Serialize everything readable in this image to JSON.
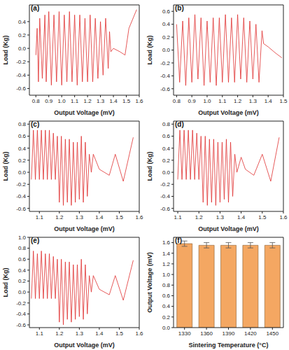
{
  "chart_data": [
    {
      "type": "line",
      "title": "(a)",
      "x_label": "Output Voltage (mV)",
      "y_label": "Load (Kg)",
      "color": "#e03030",
      "xlim": [
        0.75,
        1.6
      ],
      "ylim": [
        -0.7,
        0.65
      ],
      "xticks": [
        0.8,
        0.9,
        {
          "value": 1,
          "label": "1.0"
        },
        1.1,
        1.2,
        1.3,
        1.4,
        1.5,
        1.6
      ],
      "yticks": [
        -0.6,
        -0.4,
        -0.2,
        {
          "value": 0,
          "label": "0.0"
        },
        0.2,
        0.4
      ],
      "x": [
        0.8,
        0.81,
        0.82,
        0.83,
        0.85,
        0.87,
        0.88,
        0.9,
        0.92,
        0.94,
        0.96,
        0.98,
        1.0,
        1.02,
        1.04,
        1.06,
        1.08,
        1.1,
        1.12,
        1.14,
        1.16,
        1.18,
        1.2,
        1.22,
        1.24,
        1.26,
        1.28,
        1.3,
        1.32,
        1.34,
        1.36,
        1.37,
        1.38,
        1.4,
        1.45,
        1.49,
        1.52,
        1.58
      ],
      "values": [
        -0.1,
        0.3,
        -0.5,
        0.45,
        -0.45,
        0.5,
        -0.5,
        0.55,
        -0.55,
        0.5,
        -0.5,
        0.55,
        -0.55,
        0.5,
        -0.5,
        0.55,
        -0.5,
        0.5,
        -0.55,
        0.5,
        -0.5,
        0.45,
        -0.5,
        0.5,
        -0.5,
        0.45,
        -0.45,
        0.4,
        -0.4,
        0.45,
        -0.3,
        0.25,
        -0.05,
        0.0,
        -0.05,
        -0.1,
        0.3,
        0.58
      ]
    },
    {
      "type": "line",
      "title": "(b)",
      "x_label": "Output Voltage (mV)",
      "y_label": "Load (Kg)",
      "color": "#e03030",
      "xlim": [
        0.78,
        1.5
      ],
      "ylim": [
        -0.7,
        0.7
      ],
      "xticks": [
        0.8,
        0.9,
        {
          "value": 1,
          "label": "1.0"
        },
        1.1,
        1.2,
        1.3,
        1.4,
        1.5
      ],
      "yticks": [
        -0.6,
        -0.4,
        -0.2,
        {
          "value": 0,
          "label": "0.0"
        },
        0.2,
        0.4,
        0.6
      ],
      "x": [
        0.8,
        0.82,
        0.84,
        0.86,
        0.88,
        0.9,
        0.92,
        0.94,
        0.96,
        0.98,
        1.0,
        1.02,
        1.04,
        1.06,
        1.08,
        1.1,
        1.12,
        1.14,
        1.16,
        1.18,
        1.2,
        1.22,
        1.24,
        1.26,
        1.28,
        1.3,
        1.32,
        1.34,
        1.36,
        1.37,
        1.4,
        1.45,
        1.49
      ],
      "values": [
        0.4,
        -0.5,
        0.45,
        -0.55,
        0.5,
        -0.5,
        0.55,
        -0.45,
        0.5,
        -0.55,
        0.45,
        -0.5,
        0.5,
        -0.55,
        0.5,
        -0.5,
        0.55,
        -0.5,
        0.5,
        -0.5,
        0.55,
        -0.45,
        0.5,
        -0.5,
        0.45,
        -0.45,
        0.4,
        -0.5,
        0.3,
        0.1,
        0.05,
        -0.05,
        -0.12
      ]
    },
    {
      "type": "line",
      "title": "(c)",
      "x_label": "Output Voltage (mV)",
      "y_label": "Load (Kg)",
      "color": "#e03030",
      "xlim": [
        1.05,
        1.6
      ],
      "ylim": [
        -0.65,
        0.85
      ],
      "xticks": [
        1.1,
        1.2,
        1.3,
        1.4,
        1.5,
        1.6
      ],
      "yticks": [
        -0.6,
        -0.4,
        -0.2,
        {
          "value": 0,
          "label": "0.0"
        },
        0.2,
        0.4,
        0.6,
        0.8
      ],
      "x": [
        1.06,
        1.07,
        1.08,
        1.09,
        1.1,
        1.11,
        1.12,
        1.13,
        1.14,
        1.15,
        1.16,
        1.17,
        1.18,
        1.19,
        1.2,
        1.21,
        1.22,
        1.23,
        1.24,
        1.25,
        1.26,
        1.27,
        1.28,
        1.29,
        1.3,
        1.31,
        1.32,
        1.33,
        1.34,
        1.35,
        1.36,
        1.37,
        1.4,
        1.45,
        1.48,
        1.52,
        1.57
      ],
      "values": [
        -0.12,
        0.7,
        -0.12,
        0.7,
        -0.12,
        0.7,
        -0.12,
        0.7,
        -0.12,
        0.7,
        -0.12,
        0.65,
        -0.12,
        0.6,
        -0.5,
        0.6,
        -0.55,
        0.55,
        -0.5,
        0.55,
        -0.55,
        0.5,
        -0.5,
        0.5,
        -0.45,
        0.6,
        -0.5,
        0.5,
        -0.4,
        0.3,
        0.0,
        0.3,
        0.05,
        -0.05,
        0.3,
        -0.15,
        0.58
      ]
    },
    {
      "type": "line",
      "title": "(d)",
      "x_label": "Output Voltage (mV)",
      "y_label": "Load (Kg)",
      "color": "#e03030",
      "xlim": [
        1.08,
        1.6
      ],
      "ylim": [
        -0.65,
        0.85
      ],
      "xticks": [
        1.1,
        1.2,
        1.3,
        1.4,
        1.5,
        1.6
      ],
      "yticks": [
        -0.6,
        -0.4,
        -0.2,
        {
          "value": 0,
          "label": "0.0"
        },
        0.2,
        0.4,
        0.6,
        0.8
      ],
      "x": [
        1.1,
        1.11,
        1.12,
        1.13,
        1.14,
        1.15,
        1.16,
        1.17,
        1.18,
        1.19,
        1.2,
        1.21,
        1.22,
        1.23,
        1.24,
        1.25,
        1.26,
        1.27,
        1.28,
        1.29,
        1.3,
        1.31,
        1.32,
        1.33,
        1.34,
        1.35,
        1.36,
        1.37,
        1.38,
        1.4,
        1.42,
        1.46,
        1.5,
        1.54,
        1.58
      ],
      "values": [
        -0.12,
        0.7,
        -0.12,
        0.7,
        -0.12,
        0.7,
        -0.12,
        0.7,
        -0.12,
        0.65,
        -0.12,
        0.6,
        -0.5,
        0.6,
        -0.55,
        0.55,
        -0.5,
        0.55,
        -0.55,
        0.5,
        -0.5,
        0.5,
        -0.45,
        0.55,
        -0.5,
        0.5,
        -0.4,
        0.3,
        0.0,
        0.25,
        0.05,
        -0.05,
        0.3,
        -0.15,
        0.58
      ]
    },
    {
      "type": "line",
      "title": "(e)",
      "x_label": "Output Voltage (mV)",
      "y_label": "Load (Kg)",
      "color": "#e03030",
      "xlim": [
        1.05,
        1.6
      ],
      "ylim": [
        -0.65,
        1.0
      ],
      "xticks": [
        1.1,
        1.2,
        1.3,
        1.4,
        1.5,
        1.6
      ],
      "yticks": [
        -0.6,
        -0.4,
        -0.2,
        {
          "value": 0,
          "label": "0.0"
        },
        0.2,
        0.4,
        0.6,
        0.8,
        {
          "value": 1,
          "label": "1.0"
        }
      ],
      "x": [
        1.06,
        1.07,
        1.08,
        1.09,
        1.1,
        1.11,
        1.12,
        1.13,
        1.14,
        1.15,
        1.16,
        1.17,
        1.18,
        1.19,
        1.2,
        1.21,
        1.22,
        1.23,
        1.24,
        1.25,
        1.26,
        1.27,
        1.28,
        1.29,
        1.3,
        1.31,
        1.32,
        1.33,
        1.34,
        1.35,
        1.36,
        1.37,
        1.4,
        1.45,
        1.48,
        1.52,
        1.57
      ],
      "values": [
        -0.12,
        0.75,
        -0.12,
        0.7,
        -0.12,
        0.75,
        -0.12,
        0.7,
        -0.12,
        0.7,
        -0.12,
        0.65,
        -0.12,
        0.6,
        -0.55,
        0.6,
        -0.6,
        0.55,
        -0.5,
        0.55,
        -0.55,
        0.5,
        -0.5,
        0.5,
        -0.45,
        0.6,
        -0.5,
        0.5,
        -0.4,
        0.3,
        0.0,
        0.3,
        0.05,
        -0.05,
        0.3,
        -0.15,
        0.58
      ]
    },
    {
      "type": "bar",
      "title": "(f)",
      "x_label": "Sintering Temperature (°C)",
      "y_label": "Output Voltage (mV)",
      "color": "#f4a762",
      "categories": [
        "1330",
        "1360",
        "1390",
        "1420",
        "1450"
      ],
      "values": [
        1.58,
        1.55,
        1.55,
        1.55,
        1.55
      ],
      "errors": [
        0.05,
        0.05,
        0.05,
        0.05,
        0.05
      ],
      "ylim": [
        0,
        1.7
      ],
      "yticks": [
        {
          "value": 0,
          "label": "0.0"
        },
        0.2,
        0.4,
        0.6,
        0.8,
        {
          "value": 1,
          "label": "1.0"
        },
        1.2,
        1.4,
        1.6
      ]
    }
  ]
}
